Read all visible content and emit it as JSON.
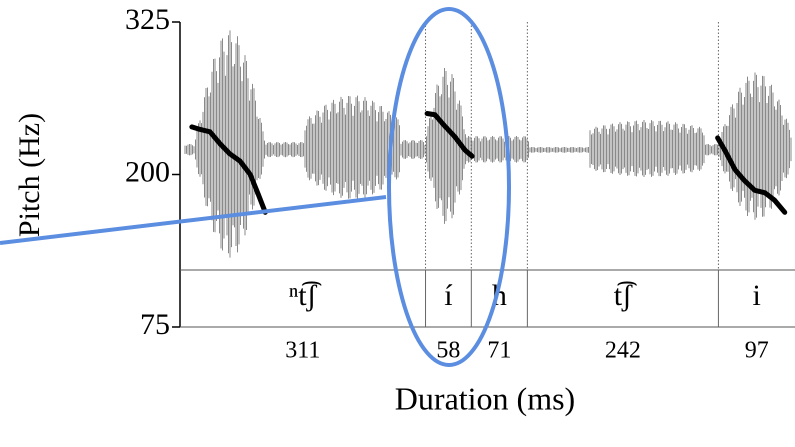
{
  "chart_data": {
    "type": "line",
    "ylabel": "Pitch (Hz)",
    "xlabel": "Duration (ms)",
    "ylim": [
      75,
      325
    ],
    "yticks": [
      75,
      200,
      325
    ],
    "segments": [
      "ⁿt͡ʃ",
      "í",
      "h",
      "t͡ʃ",
      "i"
    ],
    "durations": [
      311,
      58,
      71,
      242,
      97
    ],
    "series": [
      {
        "color": "#000000",
        "x": [
          15,
          25,
          38,
          51,
          63,
          76,
          89,
          99,
          108
        ],
        "values": [
          239,
          237,
          235,
          225,
          217,
          211,
          200,
          184,
          169
        ]
      },
      {
        "color": "#000000",
        "x": [
          313,
          323,
          335,
          348,
          361,
          370
        ],
        "values": [
          250,
          249,
          240,
          231,
          220,
          215
        ]
      },
      {
        "color": "#000000",
        "x": [
          681,
          690,
          703,
          715,
          728,
          741,
          753,
          766
        ],
        "values": [
          230,
          220,
          204,
          195,
          187,
          185,
          179,
          169
        ]
      }
    ]
  }
}
